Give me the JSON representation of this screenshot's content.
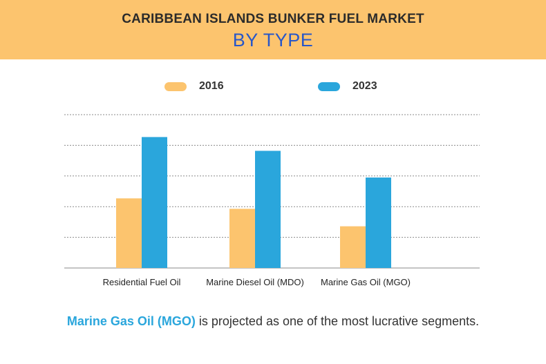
{
  "header": {
    "title": "CARIBBEAN ISLANDS BUNKER FUEL MARKET",
    "subtitle": "BY TYPE",
    "background": "#fcc46e",
    "subtitle_color": "#2857c8"
  },
  "chart_data": {
    "type": "bar",
    "categories": [
      "Residential Fuel Oil",
      "Marine Diesel Oil (MDO)",
      "Marine Gas Oil (MGO)"
    ],
    "series": [
      {
        "name": "2016",
        "color": "#fcc46e",
        "values": [
          2.27,
          1.93,
          1.36
        ]
      },
      {
        "name": "2023",
        "color": "#2aa6dc",
        "values": [
          4.27,
          3.82,
          2.95
        ]
      }
    ],
    "ylim": [
      0,
      5
    ],
    "grid": true,
    "legend_position": "top",
    "y_tick_labels_shown": false
  },
  "footer": {
    "highlight": "Marine Gas Oil (MGO)",
    "text": " is projected as one of the most lucrative segments.",
    "highlight_color": "#2aa6dc"
  }
}
